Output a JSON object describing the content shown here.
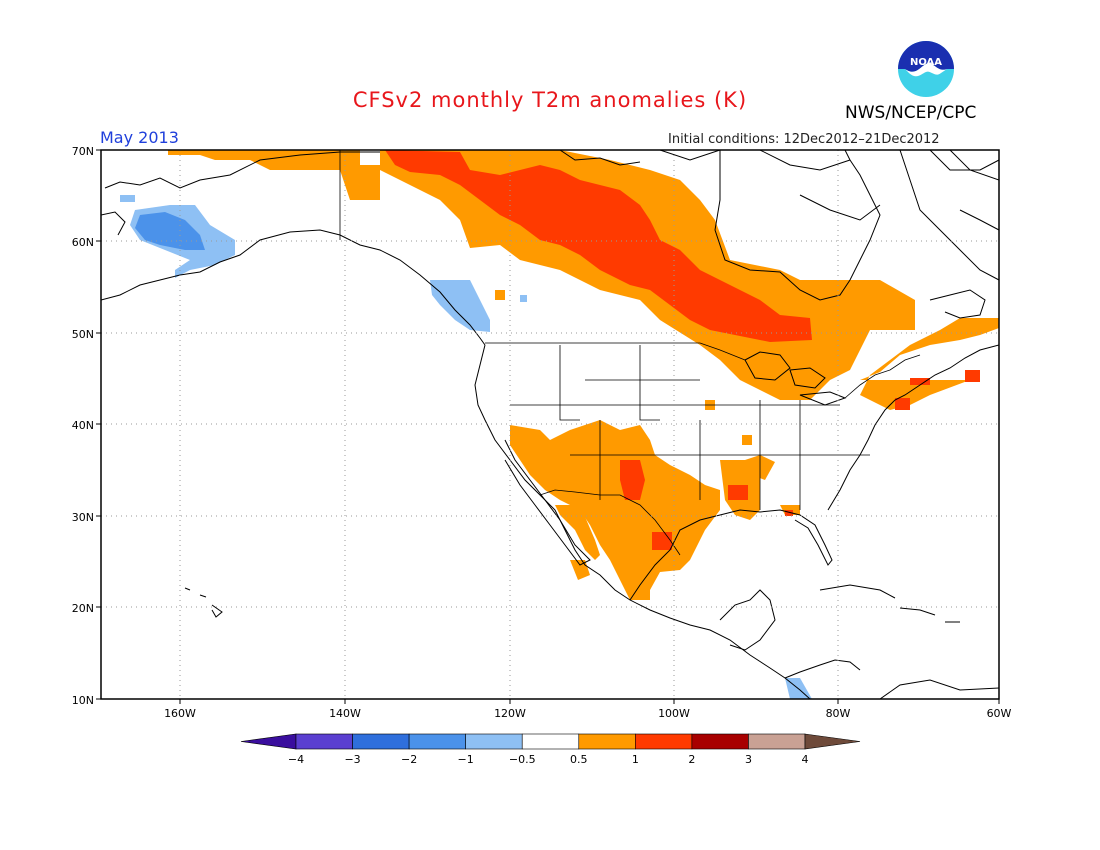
{
  "header": {
    "title": "CFSv2 monthly T2m anomalies (K)",
    "organization": "NWS/NCEP/CPC",
    "logo_text": "NOAA",
    "valid_month": "May 2013",
    "initial_conditions": "Initial conditions: 12Dec2012–21Dec2012"
  },
  "map": {
    "lon_range": [
      -172,
      -60
    ],
    "lat_range": [
      10,
      70
    ],
    "lat_ticks": [
      "10N",
      "20N",
      "30N",
      "40N",
      "50N",
      "60N",
      "70N"
    ],
    "lon_ticks": [
      "160W",
      "140W",
      "120W",
      "100W",
      "80W",
      "60W"
    ],
    "gridlines": "dotted"
  },
  "legend": {
    "labels": [
      "−4",
      "−3",
      "−2",
      "−1",
      "−0.5",
      "0.5",
      "1",
      "2",
      "3",
      "4"
    ],
    "colors": [
      "#3a0e9e",
      "#5a3fd0",
      "#2f6fdc",
      "#4b92ea",
      "#8ec0f4",
      "#ffffff",
      "#ff9a00",
      "#ff3a00",
      "#a80000",
      "#c9a194",
      "#6e4a3a"
    ]
  },
  "colors": {
    "light_blue": "#8ec0f4",
    "medium_blue": "#4b92ea",
    "orange": "#ff9a00",
    "red": "#ff3a00",
    "title_red": "#e8161b",
    "month_blue": "#1f3fdb"
  }
}
